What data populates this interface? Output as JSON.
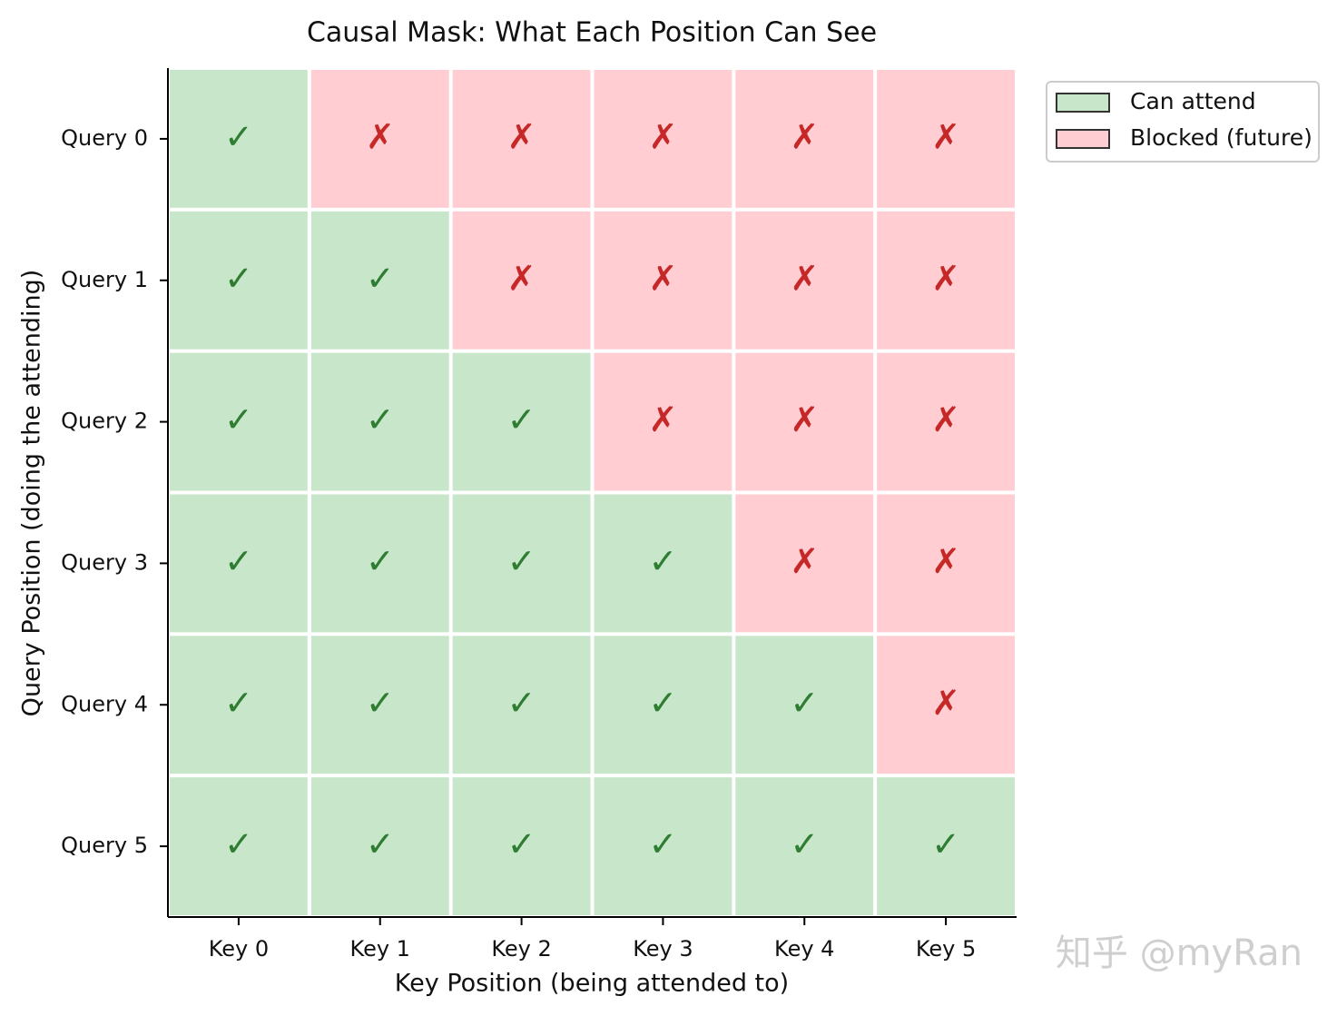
{
  "chart_data": {
    "type": "heatmap",
    "title": "Causal Mask: What Each Position Can See",
    "x_label": "Key Position (being attended to)",
    "y_label": "Query Position (doing the attending)",
    "x_categories": [
      "Key 0",
      "Key 1",
      "Key 2",
      "Key 3",
      "Key 4",
      "Key 5"
    ],
    "y_categories": [
      "Query 0",
      "Query 1",
      "Query 2",
      "Query 3",
      "Query 4",
      "Query 5"
    ],
    "values": [
      [
        1,
        0,
        0,
        0,
        0,
        0
      ],
      [
        1,
        1,
        0,
        0,
        0,
        0
      ],
      [
        1,
        1,
        1,
        0,
        0,
        0
      ],
      [
        1,
        1,
        1,
        1,
        0,
        0
      ],
      [
        1,
        1,
        1,
        1,
        1,
        0
      ],
      [
        1,
        1,
        1,
        1,
        1,
        1
      ]
    ],
    "value_labels": [
      [
        "✓",
        "✗",
        "✗",
        "✗",
        "✗",
        "✗"
      ],
      [
        "✓",
        "✓",
        "✗",
        "✗",
        "✗",
        "✗"
      ],
      [
        "✓",
        "✓",
        "✓",
        "✗",
        "✗",
        "✗"
      ],
      [
        "✓",
        "✓",
        "✓",
        "✓",
        "✗",
        "✗"
      ],
      [
        "✓",
        "✓",
        "✓",
        "✓",
        "✓",
        "✗"
      ],
      [
        "✓",
        "✓",
        "✓",
        "✓",
        "✓",
        "✓"
      ]
    ],
    "series": [
      {
        "name": "Can attend",
        "color": "#c8e6c9",
        "label_color": "#2e7d32"
      },
      {
        "name": "Blocked (future)",
        "color": "#ffcdd2",
        "label_color": "#c62828"
      }
    ],
    "legend": "upper right outside",
    "watermark": "知乎 @myRan"
  }
}
